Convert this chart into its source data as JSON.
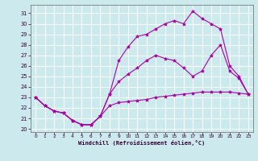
{
  "background_color": "#cce9ee",
  "grid_color": "#ffffff",
  "line_color": "#aa00aa",
  "xlabel": "Windchill (Refroidissement éolien,°C)",
  "xlim": [
    -0.5,
    23.5
  ],
  "ylim": [
    19.7,
    31.8
  ],
  "yticks": [
    20,
    21,
    22,
    23,
    24,
    25,
    26,
    27,
    28,
    29,
    30,
    31
  ],
  "xticks": [
    0,
    1,
    2,
    3,
    4,
    5,
    6,
    7,
    8,
    9,
    10,
    11,
    12,
    13,
    14,
    15,
    16,
    17,
    18,
    19,
    20,
    21,
    22,
    23
  ],
  "s1_x": [
    0,
    1,
    2,
    3,
    4,
    5,
    6,
    7,
    8,
    9,
    10,
    11,
    12,
    13,
    14,
    15,
    16,
    17,
    18,
    19,
    20,
    21,
    22,
    23
  ],
  "s1_y": [
    23.0,
    22.2,
    21.7,
    21.5,
    20.8,
    20.4,
    20.4,
    21.2,
    22.2,
    22.5,
    22.6,
    22.7,
    22.8,
    23.0,
    23.1,
    23.2,
    23.3,
    23.4,
    23.5,
    23.5,
    23.5,
    23.5,
    23.4,
    23.3
  ],
  "s2_x": [
    0,
    1,
    2,
    3,
    4,
    5,
    6,
    7,
    8,
    9,
    10,
    11,
    12,
    13,
    14,
    15,
    16,
    17,
    18,
    19,
    20,
    21,
    22,
    23
  ],
  "s2_y": [
    23.0,
    22.2,
    21.7,
    21.5,
    20.8,
    20.4,
    20.4,
    21.2,
    23.3,
    24.5,
    25.2,
    25.8,
    26.5,
    27.0,
    26.7,
    26.5,
    25.8,
    25.0,
    25.5,
    27.0,
    28.0,
    25.5,
    24.8,
    23.3
  ],
  "s3_x": [
    0,
    1,
    2,
    3,
    4,
    5,
    6,
    7,
    8,
    9,
    10,
    11,
    12,
    13,
    14,
    15,
    16,
    17,
    18,
    19,
    20,
    21,
    22,
    23
  ],
  "s3_y": [
    23.0,
    22.2,
    21.7,
    21.5,
    20.8,
    20.4,
    20.4,
    21.2,
    23.3,
    26.5,
    27.8,
    28.8,
    29.0,
    29.5,
    30.0,
    30.3,
    30.0,
    31.2,
    30.5,
    30.0,
    29.5,
    26.0,
    25.0,
    23.3
  ]
}
